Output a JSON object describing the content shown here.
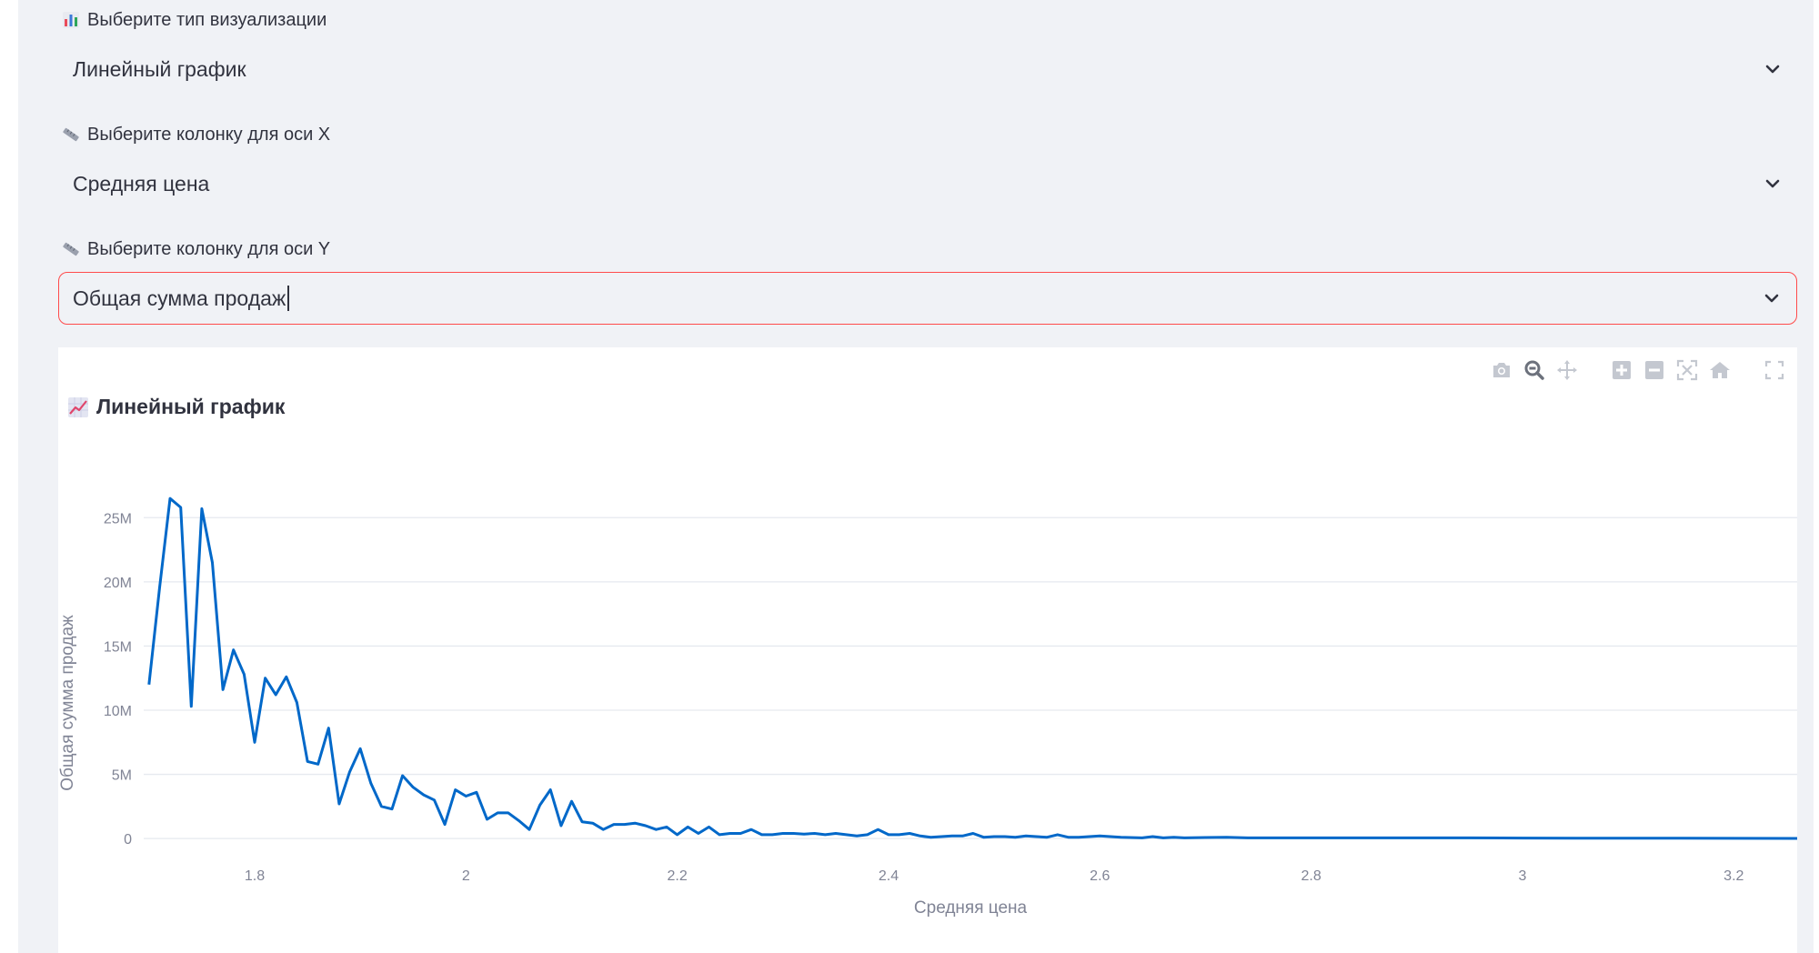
{
  "viz_type": {
    "label": "Выберите тип визуализации",
    "icon": "bar-chart-emoji-icon",
    "value": "Линейный график"
  },
  "x_axis_select": {
    "label": "Выберите колонку для оси X",
    "icon": "ruler-emoji-icon",
    "value": "Средняя цена"
  },
  "y_axis_select": {
    "label": "Выберите колонку для оси Y",
    "icon": "ruler-emoji-icon",
    "value": "Общая сумма продаж"
  },
  "chart_header": {
    "icon": "chart-increasing-emoji-icon",
    "title": "Линейный график"
  },
  "modebar": [
    "camera-icon",
    "zoom-icon",
    "pan-icon",
    "zoom-in-icon",
    "zoom-out-icon",
    "autoscale-icon",
    "reset-axes-icon",
    "fullscreen-icon"
  ],
  "colors": {
    "line": "#0068c9",
    "accent": "#ff4b4b",
    "panel": "#f0f2f6",
    "grid": "#e6e9ef"
  },
  "chart_data": {
    "type": "line",
    "title": "",
    "xlabel": "Средняя цена",
    "ylabel": "Общая сумма продаж",
    "xlim": [
      1.695,
      3.26
    ],
    "ylim": [
      -700000,
      27500000
    ],
    "xticks": [
      1.8,
      2,
      2.2,
      2.4,
      2.6,
      2.8,
      3,
      3.2
    ],
    "xtick_labels": [
      "1.8",
      "2",
      "2.2",
      "2.4",
      "2.6",
      "2.8",
      "3",
      "3.2"
    ],
    "yticks": [
      0,
      5000000,
      10000000,
      15000000,
      20000000,
      25000000
    ],
    "ytick_labels": [
      "0",
      "5M",
      "10M",
      "15M",
      "20M",
      "25M"
    ],
    "grid": true,
    "series": [
      {
        "x": [
          1.7,
          1.71,
          1.72,
          1.73,
          1.74,
          1.75,
          1.76,
          1.77,
          1.78,
          1.79,
          1.8,
          1.81,
          1.82,
          1.83,
          1.84,
          1.85,
          1.86,
          1.87,
          1.88,
          1.89,
          1.9,
          1.91,
          1.92,
          1.93,
          1.94,
          1.95,
          1.96,
          1.97,
          1.98,
          1.99,
          2.0,
          2.01,
          2.02,
          2.03,
          2.04,
          2.05,
          2.06,
          2.07,
          2.08,
          2.09,
          2.1,
          2.11,
          2.12,
          2.13,
          2.14,
          2.15,
          2.16,
          2.17,
          2.18,
          2.19,
          2.2,
          2.21,
          2.22,
          2.23,
          2.24,
          2.25,
          2.26,
          2.27,
          2.28,
          2.29,
          2.3,
          2.31,
          2.32,
          2.33,
          2.34,
          2.35,
          2.36,
          2.37,
          2.38,
          2.39,
          2.4,
          2.41,
          2.42,
          2.43,
          2.44,
          2.45,
          2.46,
          2.47,
          2.48,
          2.49,
          2.5,
          2.51,
          2.52,
          2.53,
          2.54,
          2.55,
          2.56,
          2.57,
          2.58,
          2.59,
          2.6,
          2.62,
          2.64,
          2.65,
          2.66,
          2.67,
          2.68,
          2.7,
          2.72,
          2.74,
          2.76,
          2.8,
          2.85,
          2.9,
          2.95,
          3.0,
          3.05,
          3.1,
          3.15,
          3.2,
          3.26
        ],
        "values": [
          12000000,
          19500000,
          26500000,
          25800000,
          10300000,
          25700000,
          21500000,
          11600000,
          14700000,
          12800000,
          7500000,
          12500000,
          11200000,
          12600000,
          10600000,
          6000000,
          5800000,
          8600000,
          2700000,
          5200000,
          7000000,
          4300000,
          2500000,
          2300000,
          4900000,
          4000000,
          3400000,
          3000000,
          1100000,
          3800000,
          3300000,
          3600000,
          1500000,
          2000000,
          2000000,
          1400000,
          700000,
          2600000,
          3800000,
          1000000,
          2900000,
          1300000,
          1200000,
          700000,
          1100000,
          1100000,
          1200000,
          1000000,
          700000,
          900000,
          300000,
          900000,
          400000,
          900000,
          300000,
          400000,
          400000,
          700000,
          300000,
          300000,
          400000,
          400000,
          350000,
          400000,
          300000,
          400000,
          300000,
          200000,
          300000,
          700000,
          300000,
          300000,
          400000,
          200000,
          100000,
          150000,
          200000,
          200000,
          400000,
          100000,
          150000,
          150000,
          100000,
          200000,
          150000,
          100000,
          300000,
          100000,
          100000,
          150000,
          200000,
          100000,
          50000,
          150000,
          50000,
          100000,
          50000,
          80000,
          100000,
          50000,
          50000,
          50000,
          50000,
          50000,
          50000,
          40000,
          30000,
          30000,
          20000,
          15000,
          10000
        ]
      }
    ]
  }
}
